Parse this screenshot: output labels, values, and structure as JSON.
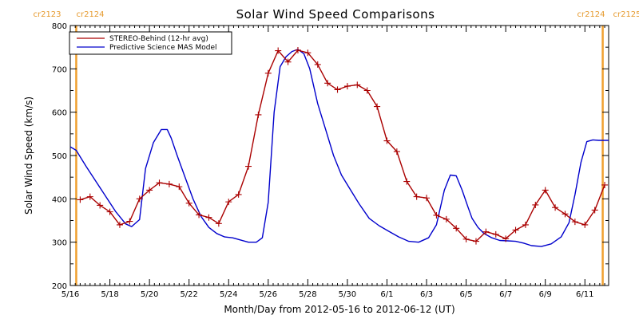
{
  "chart_data": {
    "type": "line",
    "title": "Solar Wind Speed Comparisons",
    "xlabel": "Month/Day from 2012-05-16 to 2012-06-12 (UT)",
    "ylabel": "Solar Wind Speed (km/s)",
    "xlim": [
      0,
      27.2
    ],
    "ylim": [
      200,
      800
    ],
    "x_ticks": [
      {
        "x": 0,
        "label": "5/16"
      },
      {
        "x": 2,
        "label": "5/18"
      },
      {
        "x": 4,
        "label": "5/20"
      },
      {
        "x": 6,
        "label": "5/22"
      },
      {
        "x": 8,
        "label": "5/24"
      },
      {
        "x": 10,
        "label": "5/26"
      },
      {
        "x": 12,
        "label": "5/28"
      },
      {
        "x": 14,
        "label": "5/30"
      },
      {
        "x": 16,
        "label": "6/1"
      },
      {
        "x": 18,
        "label": "6/3"
      },
      {
        "x": 20,
        "label": "6/5"
      },
      {
        "x": 22,
        "label": "6/7"
      },
      {
        "x": 24,
        "label": "6/9"
      },
      {
        "x": 26,
        "label": "6/11"
      }
    ],
    "y_ticks": [
      200,
      300,
      400,
      500,
      600,
      700,
      800
    ],
    "carrington_markers": [
      {
        "x": 0.3,
        "label_left": "cr2123",
        "label_right": "cr2124"
      },
      {
        "x": 26.9,
        "label_left": "cr2124",
        "label_right": "cr2125"
      }
    ],
    "legend_position": "top-left",
    "series": [
      {
        "name": "STEREO-Behind (12-hr avg)",
        "color": "#aa0000",
        "marker": "plus",
        "x": [
          0.5,
          1.0,
          1.5,
          2.0,
          2.5,
          3.0,
          3.5,
          4.0,
          4.5,
          5.0,
          5.5,
          6.0,
          6.5,
          7.0,
          7.5,
          8.0,
          8.5,
          9.0,
          9.5,
          10.0,
          10.5,
          11.0,
          11.5,
          12.0,
          12.5,
          13.0,
          13.5,
          14.0,
          14.5,
          15.0,
          15.5,
          16.0,
          16.5,
          17.0,
          17.5,
          18.0,
          18.5,
          19.0,
          19.5,
          20.0,
          20.5,
          21.0,
          21.5,
          22.0,
          22.5,
          23.0,
          23.5,
          24.0,
          24.5,
          25.0,
          25.5,
          26.0,
          26.5,
          27.0
        ],
        "y": [
          398,
          405,
          385,
          370,
          340,
          348,
          400,
          420,
          437,
          434,
          428,
          390,
          363,
          357,
          343,
          393,
          410,
          475,
          594,
          690,
          742,
          716,
          743,
          737,
          710,
          667,
          652,
          660,
          663,
          650,
          613,
          534,
          509,
          440,
          405,
          402,
          362,
          353,
          332,
          307,
          302,
          324,
          318,
          308,
          328,
          340,
          386,
          420,
          380,
          365,
          347,
          340,
          374,
          432
        ]
      },
      {
        "name": "Predictive Science MAS Model",
        "color": "#0000cc",
        "marker": "none",
        "x": [
          0,
          0.3,
          0.8,
          1.3,
          1.8,
          2.3,
          2.8,
          3.1,
          3.5,
          3.8,
          4.2,
          4.6,
          4.9,
          5.1,
          5.4,
          5.8,
          6.2,
          6.6,
          7.0,
          7.4,
          7.8,
          8.2,
          8.6,
          9.0,
          9.4,
          9.7,
          10.0,
          10.3,
          10.6,
          10.9,
          11.2,
          11.5,
          11.8,
          12.1,
          12.5,
          12.9,
          13.3,
          13.7,
          14.1,
          14.6,
          15.1,
          15.6,
          16.1,
          16.6,
          17.1,
          17.6,
          18.1,
          18.5,
          18.9,
          19.2,
          19.5,
          19.8,
          20.1,
          20.3,
          20.6,
          20.9,
          21.3,
          21.7,
          22.1,
          22.5,
          22.9,
          23.3,
          23.8,
          24.3,
          24.8,
          25.2,
          25.5,
          25.8,
          26.1,
          26.4,
          26.7,
          26.9,
          27.2
        ],
        "y": [
          520,
          512,
          475,
          440,
          405,
          370,
          342,
          336,
          352,
          470,
          530,
          560,
          560,
          540,
          500,
          450,
          400,
          360,
          334,
          320,
          312,
          310,
          305,
          300,
          300,
          310,
          392,
          600,
          705,
          728,
          740,
          745,
          735,
          700,
          620,
          560,
          500,
          455,
          425,
          388,
          355,
          338,
          325,
          312,
          302,
          300,
          310,
          340,
          420,
          455,
          453,
          420,
          380,
          355,
          334,
          320,
          310,
          304,
          303,
          302,
          298,
          292,
          290,
          296,
          312,
          345,
          410,
          484,
          532,
          536,
          535,
          535,
          535
        ]
      }
    ]
  }
}
